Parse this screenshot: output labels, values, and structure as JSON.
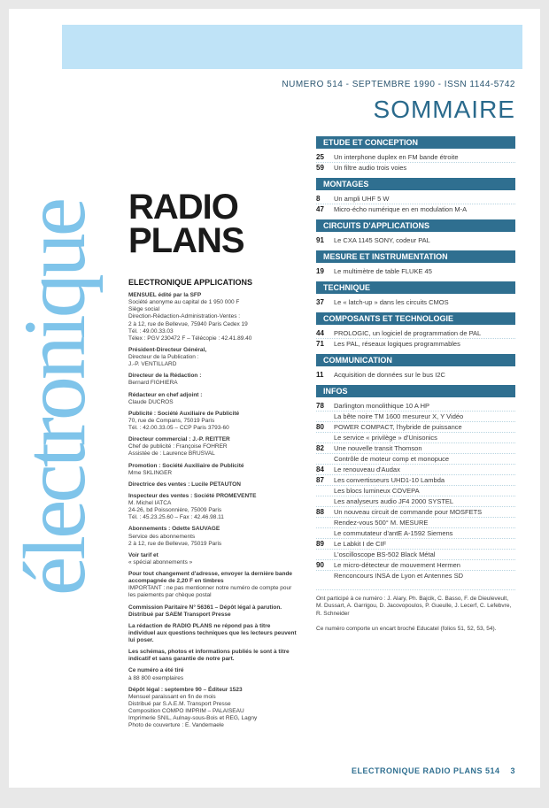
{
  "colors": {
    "brand_light": "#7fc4ea",
    "brand_mid": "#bfe3f7",
    "brand_dark": "#2f6f90",
    "text": "#1a1a1a",
    "text_soft": "#3a3a3a",
    "page_bg": "#ffffff"
  },
  "typography": {
    "vert_title_size_pt": 100,
    "main_title_size_pt": 40,
    "sommaire_title_size_pt": 28,
    "section_bar_size_pt": 9,
    "entry_size_pt": 7.5,
    "masthead_size_pt": 6.5
  },
  "header": {
    "issue_line": "NUMERO 514 - SEPTEMBRE 1990 - ISSN 1144-5742",
    "vert_title": "électronique",
    "main_title_line1": "RADIO",
    "main_title_line2": "PLANS",
    "subtitle": "ELECTRONIQUE APPLICATIONS"
  },
  "masthead": {
    "blocks": [
      "MENSUEL édité par la SFP\nSociété anonyme au capital de 1 950 000 F\nSiège social\nDirection-Rédaction-Administration-Ventes :\n2 à 12, rue de Bellevue, 75940 Paris Cedex 19\nTél. : 49.00.33.03\nTélex : PGV 230472 F – Télécopie : 42.41.89.40",
      "Président-Directeur Général,\nDirecteur de la Publication :\nJ.-P. VENTILLARD",
      "Directeur de la Rédaction :\nBernard FIGHIERA",
      "Rédacteur en chef adjoint :\nClaude DUCROS",
      "Publicité : Société Auxiliaire de Publicité\n70, rue de Compans, 75019 Paris\nTél. : 42.00.33.05 – CCP Paris 3793-60",
      "Directeur commercial : J.-P. REITTER\nChef de publicité : Françoise FOHRER\nAssistée de : Laurence BRUSVAL",
      "Promotion : Société Auxiliaire de Publicité\nMme SKLINGER",
      "Directrice des ventes : Lucile PETAUTON",
      "Inspecteur des ventes : Société PROMEVENTE\nM. Michel IATCA\n24-26, bd Poissonnière, 75009 Paris\nTél. : 45.23.25.60 – Fax : 42.46.98.11",
      "Abonnements : Odette SAUVAGE\nService des abonnements\n2 à 12, rue de Bellevue, 75019 Paris",
      "Voir tarif et\n« spécial abonnements »",
      "Pour tout changement d'adresse, envoyer la dernière bande accompagnée de 2,20 F en timbres\nIMPORTANT : ne pas mentionner notre numéro de compte pour les paiements par chèque postal",
      "Commission Paritaire N° 56361 – Dépôt légal à parution. Distribué par SAEM Transport Presse",
      "La rédaction de RADIO PLANS ne répond pas à titre individuel aux questions techniques que les lecteurs peuvent lui poser.",
      "Les schémas, photos et informations publiés le sont à titre indicatif et sans garantie de notre part.",
      "Ce numéro a été tiré\nà 88 800 exemplaires",
      "Dépôt légal : septembre 90 – Éditeur 1523\nMensuel paraissant en fin de mois\nDistribué par S.A.E.M. Transport Presse\nComposition COMPO IMPRIM – PALAISEAU\nImprimerie SNIL, Aulnay-sous-Bois et REG, Lagny\nPhoto de couverture : E. Vandemaele"
    ]
  },
  "sommaire": {
    "title": "SOMMAIRE",
    "sections": [
      {
        "label": "ETUDE ET CONCEPTION",
        "entries": [
          {
            "page": "25",
            "text": "Un interphone duplex en FM bande étroite"
          },
          {
            "page": "59",
            "text": "Un filtre audio trois voies"
          }
        ]
      },
      {
        "label": "MONTAGES",
        "entries": [
          {
            "page": "8",
            "text": "Un ampli UHF 5 W"
          },
          {
            "page": "47",
            "text": "Micro-écho numérique en en modulation M-A"
          }
        ]
      },
      {
        "label": "CIRCUITS D'APPLICATIONS",
        "entries": [
          {
            "page": "91",
            "text": "Le CXA 1145 SONY, codeur PAL"
          }
        ]
      },
      {
        "label": "MESURE ET INSTRUMENTATION",
        "entries": [
          {
            "page": "19",
            "text": "Le multimètre de table FLUKE 45"
          }
        ]
      },
      {
        "label": "TECHNIQUE",
        "entries": [
          {
            "page": "37",
            "text": "Le « latch-up » dans les circuits CMOS"
          }
        ]
      },
      {
        "label": "COMPOSANTS ET TECHNOLOGIE",
        "entries": [
          {
            "page": "44",
            "text": "PROLOGIC, un logiciel de programmation de PAL"
          },
          {
            "page": "71",
            "text": "Les PAL, réseaux logiques programmables"
          }
        ]
      },
      {
        "label": "COMMUNICATION",
        "entries": [
          {
            "page": "11",
            "text": "Acquisition de données sur le bus I2C"
          }
        ]
      },
      {
        "label": "INFOS",
        "entries": [
          {
            "page": "78",
            "text": "Darlington monolithique 10 A HP"
          },
          {
            "page": "",
            "text": "La bête noire TM 1600 mesureur X, Y Vidéo"
          },
          {
            "page": "80",
            "text": "POWER COMPACT, l'hybride de puissance"
          },
          {
            "page": "",
            "text": "Le service « privilège » d'Unisonics"
          },
          {
            "page": "82",
            "text": "Une nouvelle transit Thomson"
          },
          {
            "page": "",
            "text": "Contrôle de moteur comp et monopuce"
          },
          {
            "page": "84",
            "text": "Le renouveau d'Audax"
          },
          {
            "page": "87",
            "text": "Les convertisseurs UHD1-10 Lambda"
          },
          {
            "page": "",
            "text": "Les blocs lumineux COVEPA"
          },
          {
            "page": "",
            "text": "Les analyseurs audio JF4 2000 SYSTEL"
          },
          {
            "page": "88",
            "text": "Un nouveau circuit de commande pour MOSFETS"
          },
          {
            "page": "",
            "text": "Rendez-vous 500° M. MESURE"
          },
          {
            "page": "",
            "text": "Le commutateur d'antE A-1592 Siemens"
          },
          {
            "page": "89",
            "text": "Le Labkit I de CIF"
          },
          {
            "page": "",
            "text": "L'oscilloscope BS-502 Black Métal"
          },
          {
            "page": "90",
            "text": "Le micro-détecteur de mouvement Hermen"
          },
          {
            "page": "",
            "text": "Renconcours INSA de Lyon et Antennes SD"
          }
        ]
      }
    ],
    "contributors_title": "Ont participé à ce numéro :",
    "contributors": "J. Alary, Ph. Bajcik, C. Basso, F. de Dieuleveult, M. Dussart, A. Garrigou, D. Jacovopoulos, P. Gueulle, J. Lecerf, C. Lefebvre, R. Schneider",
    "encart_note": "Ce numéro comporte un encart broché Educatel (folios 51, 52, 53, 54)."
  },
  "footer": {
    "line": "ELECTRONIQUE RADIO PLANS 514",
    "page_no": "3"
  }
}
